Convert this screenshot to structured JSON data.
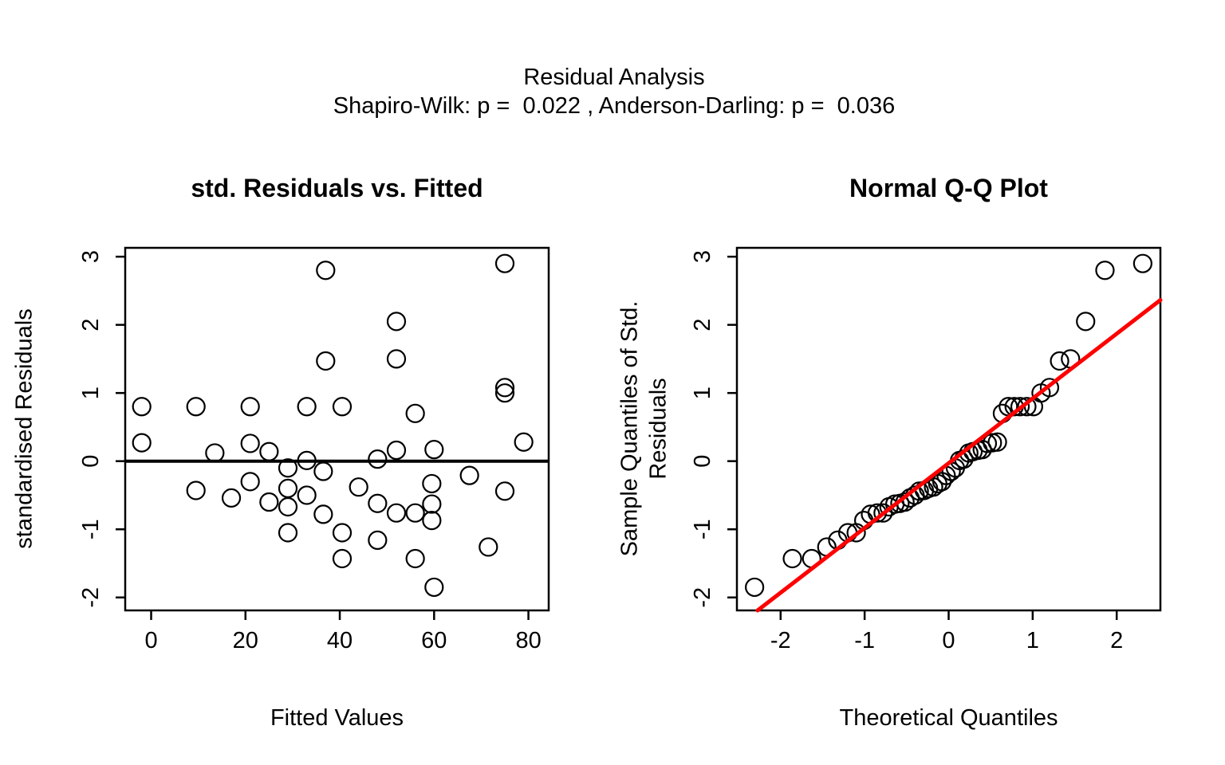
{
  "header": {
    "title": "Residual Analysis",
    "subtitle": "Shapiro-Wilk: p =  0.022 , Anderson-Darling: p =  0.036"
  },
  "tests": {
    "shapiro_wilk_p": 0.022,
    "anderson_darling_p": 0.036
  },
  "colors": {
    "background": "#FFFFFF",
    "foreground": "#000000",
    "qq_line": "#FF0000"
  },
  "chart_data": [
    {
      "id": "residuals_vs_fitted",
      "type": "scatter",
      "title": "std. Residuals vs. Fitted",
      "xlabel": "Fitted Values",
      "ylabel": "standardised Residuals",
      "xlim": [
        -5.5,
        84.3
      ],
      "ylim": [
        -2.19,
        3.13
      ],
      "xticks": [
        0,
        20,
        40,
        60,
        80
      ],
      "yticks": [
        -2,
        -1,
        0,
        1,
        2,
        3
      ],
      "grid": false,
      "legend": null,
      "marker": "open-circle",
      "hline_y": 0,
      "points": [
        [
          -2,
          0.8
        ],
        [
          9.5,
          0.8
        ],
        [
          21,
          0.8
        ],
        [
          33,
          0.8
        ],
        [
          40.5,
          0.8
        ],
        [
          56,
          0.7
        ],
        [
          -2,
          0.27
        ],
        [
          21,
          0.26
        ],
        [
          79,
          0.28
        ],
        [
          13.5,
          0.12
        ],
        [
          25,
          0.14
        ],
        [
          52,
          0.16
        ],
        [
          60,
          0.17
        ],
        [
          33,
          0.01
        ],
        [
          48,
          0.03
        ],
        [
          37,
          2.8
        ],
        [
          75,
          2.9
        ],
        [
          52,
          2.05
        ],
        [
          37,
          1.47
        ],
        [
          52,
          1.5
        ],
        [
          75,
          1.08
        ],
        [
          75,
          1.0
        ],
        [
          29,
          -0.1
        ],
        [
          36.5,
          -0.15
        ],
        [
          67.5,
          -0.21
        ],
        [
          21,
          -0.3
        ],
        [
          59.5,
          -0.33
        ],
        [
          44,
          -0.38
        ],
        [
          29,
          -0.4
        ],
        [
          9.5,
          -0.43
        ],
        [
          75,
          -0.44
        ],
        [
          33,
          -0.5
        ],
        [
          17,
          -0.54
        ],
        [
          25,
          -0.6
        ],
        [
          48,
          -0.62
        ],
        [
          59.5,
          -0.63
        ],
        [
          29,
          -0.67
        ],
        [
          52,
          -0.76
        ],
        [
          56,
          -0.76
        ],
        [
          36.5,
          -0.78
        ],
        [
          59.5,
          -0.87
        ],
        [
          29,
          -1.05
        ],
        [
          40.5,
          -1.05
        ],
        [
          48,
          -1.16
        ],
        [
          71.5,
          -1.26
        ],
        [
          40.5,
          -1.43
        ],
        [
          56,
          -1.43
        ],
        [
          60,
          -1.85
        ]
      ]
    },
    {
      "id": "normal_qq",
      "type": "scatter",
      "title": "Normal Q-Q Plot",
      "xlabel": "Theoretical Quantiles",
      "ylabel": "Sample Quantiles of Std. Residuals",
      "xlim": [
        -2.52,
        2.52
      ],
      "ylim": [
        -2.19,
        3.13
      ],
      "xticks": [
        -2,
        -1,
        0,
        1,
        2
      ],
      "yticks": [
        -2,
        -1,
        0,
        1,
        2,
        3
      ],
      "grid": false,
      "legend": null,
      "marker": "open-circle",
      "refline": {
        "slope": 0.95,
        "intercept": -0.03,
        "color": "#FF0000"
      },
      "points": [
        [
          -2.31,
          -1.85
        ],
        [
          -1.86,
          -1.43
        ],
        [
          -1.63,
          -1.43
        ],
        [
          -1.45,
          -1.26
        ],
        [
          -1.32,
          -1.16
        ],
        [
          -1.2,
          -1.05
        ],
        [
          -1.1,
          -1.05
        ],
        [
          -1.01,
          -0.87
        ],
        [
          -0.93,
          -0.78
        ],
        [
          -0.85,
          -0.76
        ],
        [
          -0.78,
          -0.76
        ],
        [
          -0.71,
          -0.67
        ],
        [
          -0.64,
          -0.63
        ],
        [
          -0.58,
          -0.62
        ],
        [
          -0.52,
          -0.6
        ],
        [
          -0.46,
          -0.54
        ],
        [
          -0.4,
          -0.5
        ],
        [
          -0.35,
          -0.44
        ],
        [
          -0.29,
          -0.43
        ],
        [
          -0.24,
          -0.4
        ],
        [
          -0.18,
          -0.38
        ],
        [
          -0.13,
          -0.33
        ],
        [
          -0.08,
          -0.3
        ],
        [
          -0.03,
          -0.21
        ],
        [
          0.03,
          -0.15
        ],
        [
          0.08,
          -0.1
        ],
        [
          0.13,
          0.01
        ],
        [
          0.18,
          0.03
        ],
        [
          0.24,
          0.12
        ],
        [
          0.29,
          0.14
        ],
        [
          0.35,
          0.16
        ],
        [
          0.4,
          0.17
        ],
        [
          0.46,
          0.26
        ],
        [
          0.52,
          0.27
        ],
        [
          0.58,
          0.28
        ],
        [
          0.64,
          0.7
        ],
        [
          0.71,
          0.8
        ],
        [
          0.78,
          0.8
        ],
        [
          0.85,
          0.8
        ],
        [
          0.93,
          0.8
        ],
        [
          1.01,
          0.8
        ],
        [
          1.1,
          1.0
        ],
        [
          1.2,
          1.08
        ],
        [
          1.32,
          1.47
        ],
        [
          1.45,
          1.5
        ],
        [
          1.63,
          2.05
        ],
        [
          1.86,
          2.8
        ],
        [
          2.31,
          2.9
        ]
      ]
    }
  ]
}
